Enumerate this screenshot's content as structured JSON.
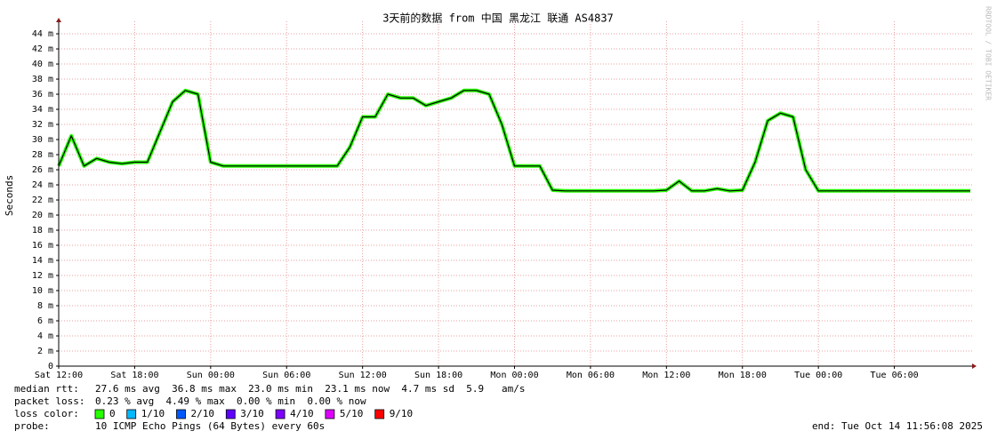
{
  "chart_data": {
    "type": "line",
    "title": "3天前的数据 from 中国 黑龙江 联通 AS4837",
    "y_label": "Seconds",
    "watermark": "RRDTOOL / TOBI OETIKER",
    "x": [
      0,
      1,
      2,
      3,
      4,
      5,
      6,
      7,
      8,
      9,
      10,
      11,
      12,
      13,
      14,
      15,
      16,
      17,
      18,
      19,
      20,
      21,
      22,
      23,
      24,
      25,
      26,
      27,
      28,
      29,
      30,
      31,
      32,
      33,
      34,
      35,
      36,
      37,
      38,
      39,
      40,
      41,
      42,
      43,
      44,
      45,
      46,
      47,
      48,
      49,
      50,
      51,
      52,
      53,
      54,
      55,
      56,
      57,
      58,
      59,
      60,
      61,
      62,
      63,
      64,
      65,
      66,
      67,
      68,
      69,
      70,
      71,
      72
    ],
    "values": [
      0.0265,
      0.0305,
      0.0265,
      0.0275,
      0.027,
      0.0268,
      0.027,
      0.027,
      0.031,
      0.035,
      0.0365,
      0.036,
      0.027,
      0.0265,
      0.0265,
      0.0265,
      0.0265,
      0.0265,
      0.0265,
      0.0265,
      0.0265,
      0.0265,
      0.0265,
      0.029,
      0.033,
      0.033,
      0.036,
      0.0355,
      0.0355,
      0.0345,
      0.035,
      0.0355,
      0.0365,
      0.0365,
      0.036,
      0.032,
      0.0265,
      0.0265,
      0.0265,
      0.0233,
      0.0232,
      0.0232,
      0.0232,
      0.0232,
      0.0232,
      0.0232,
      0.0232,
      0.0232,
      0.0233,
      0.0245,
      0.0232,
      0.0232,
      0.0235,
      0.0232,
      0.0233,
      0.027,
      0.0325,
      0.0335,
      0.033,
      0.026,
      0.0232,
      0.0232,
      0.0232,
      0.0232,
      0.0232,
      0.0232,
      0.0232,
      0.0232,
      0.0232,
      0.0232,
      0.0232,
      0.0232,
      0.0232
    ],
    "color": "#26ff00",
    "xlim": [
      0,
      72
    ],
    "xticks": [
      {
        "value": 0,
        "label": "Sat 12:00"
      },
      {
        "value": 6,
        "label": "Sat 18:00"
      },
      {
        "value": 12,
        "label": "Sun 00:00"
      },
      {
        "value": 18,
        "label": "Sun 06:00"
      },
      {
        "value": 24,
        "label": "Sun 12:00"
      },
      {
        "value": 30,
        "label": "Sun 18:00"
      },
      {
        "value": 36,
        "label": "Mon 00:00"
      },
      {
        "value": 42,
        "label": "Mon 06:00"
      },
      {
        "value": 48,
        "label": "Mon 12:00"
      },
      {
        "value": 54,
        "label": "Mon 18:00"
      },
      {
        "value": 60,
        "label": "Tue 00:00"
      },
      {
        "value": 66,
        "label": "Tue 06:00"
      }
    ],
    "ylim": [
      0,
      0.0453
    ],
    "yticks": [
      0,
      {
        "value": 0.002,
        "label": "2 m"
      },
      {
        "value": 0.004,
        "label": "4 m"
      },
      {
        "value": 0.006,
        "label": "6 m"
      },
      {
        "value": 0.008,
        "label": "8 m"
      },
      {
        "value": 0.01,
        "label": "10 m"
      },
      {
        "value": 0.012,
        "label": "12 m"
      },
      {
        "value": 0.014,
        "label": "14 m"
      },
      {
        "value": 0.016,
        "label": "16 m"
      },
      {
        "value": 0.018,
        "label": "18 m"
      },
      {
        "value": 0.02,
        "label": "20 m"
      },
      {
        "value": 0.022,
        "label": "22 m"
      },
      {
        "value": 0.024,
        "label": "24 m"
      },
      {
        "value": 0.026,
        "label": "26 m"
      },
      {
        "value": 0.028,
        "label": "28 m"
      },
      {
        "value": 0.03,
        "label": "30 m"
      },
      {
        "value": 0.032,
        "label": "32 m"
      },
      {
        "value": 0.034,
        "label": "34 m"
      },
      {
        "value": 0.036,
        "label": "36 m"
      },
      {
        "value": 0.038,
        "label": "38 m"
      },
      {
        "value": 0.04,
        "label": "40 m"
      },
      {
        "value": 0.042,
        "label": "42 m"
      },
      {
        "value": 0.044,
        "label": "44 m"
      }
    ],
    "grid": true,
    "stats": [
      {
        "label": "median rtt:",
        "text": "27.6 ms avg  36.8 ms max  23.0 ms min  23.1 ms now  4.7 ms sd  5.9   am/s"
      },
      {
        "label": "packet loss:",
        "text": "0.23 % avg  4.49 % max  0.00 % min  0.00 % now"
      }
    ],
    "loss_label": "loss color:",
    "loss_colors": [
      {
        "label": "0",
        "color": "#26ff00"
      },
      {
        "label": "1/10",
        "color": "#00b8ff"
      },
      {
        "label": "2/10",
        "color": "#0059ff"
      },
      {
        "label": "3/10",
        "color": "#5e00ff"
      },
      {
        "label": "4/10",
        "color": "#7e00ff"
      },
      {
        "label": "5/10",
        "color": "#dd00ff"
      },
      {
        "label": "9/10",
        "color": "#ff0000"
      }
    ],
    "probe_label": "probe:",
    "probe": "10 ICMP Echo Pings (64 Bytes) every 60s",
    "end": "end: Tue Oct 14 11:56:08 2025"
  }
}
